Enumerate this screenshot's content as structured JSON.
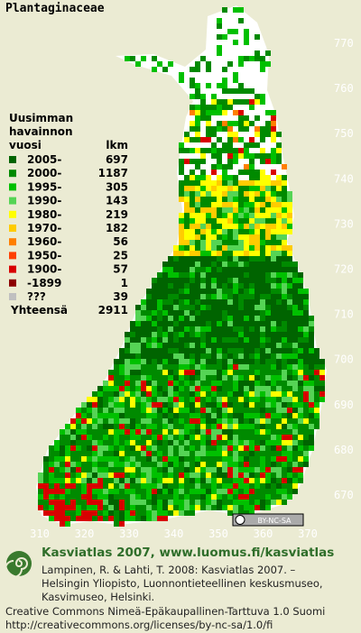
{
  "title": "Plantaginaceae",
  "legend": {
    "header": [
      "Uusimman",
      "havainnon"
    ],
    "year_header": "vuosi",
    "count_header": "lkm",
    "rows": [
      {
        "label": "2005-",
        "count": 697,
        "color": "#006400"
      },
      {
        "label": "2000-",
        "count": 1187,
        "color": "#008a00"
      },
      {
        "label": "1995-",
        "count": 305,
        "color": "#00c000"
      },
      {
        "label": "1990-",
        "count": 143,
        "color": "#55d455"
      },
      {
        "label": "1980-",
        "count": 219,
        "color": "#ffff00"
      },
      {
        "label": "1970-",
        "count": 182,
        "color": "#ffcc00"
      },
      {
        "label": "1960-",
        "count": 56,
        "color": "#ff7f00"
      },
      {
        "label": "1950-",
        "count": 25,
        "color": "#ff3f00"
      },
      {
        "label": "1900-",
        "count": 57,
        "color": "#d80000"
      },
      {
        "label": "-1899",
        "count": 1,
        "color": "#8c0000"
      },
      {
        "label": "???",
        "count": 39,
        "color": "#c0c0c0"
      }
    ],
    "total_label": "Yhteensä",
    "total": 2911
  },
  "y_labels": [
    "770",
    "760",
    "750",
    "740",
    "730",
    "720",
    "710",
    "700",
    "690",
    "680",
    "670"
  ],
  "x_labels": [
    "310",
    "320",
    "330",
    "340",
    "350",
    "360",
    "370"
  ],
  "badge": "BY-NC-SA",
  "footer": {
    "heading": "Kasviatlas 2007, www.luomus.fi/kasviatlas",
    "citation": [
      "Lampinen, R. & Lahti, T. 2008: Kasviatlas 2007. –",
      "Helsingin Yliopisto, Luonnontieteellinen keskusmuseo,",
      "Kasvimuseo, Helsinki."
    ],
    "license": [
      "Creative Commons Nimeä-Epäkaupallinen-Tarttuva 1.0 Suomi",
      "http://creativecommons.org/licenses/by-nc-sa/1.0/fi"
    ]
  }
}
